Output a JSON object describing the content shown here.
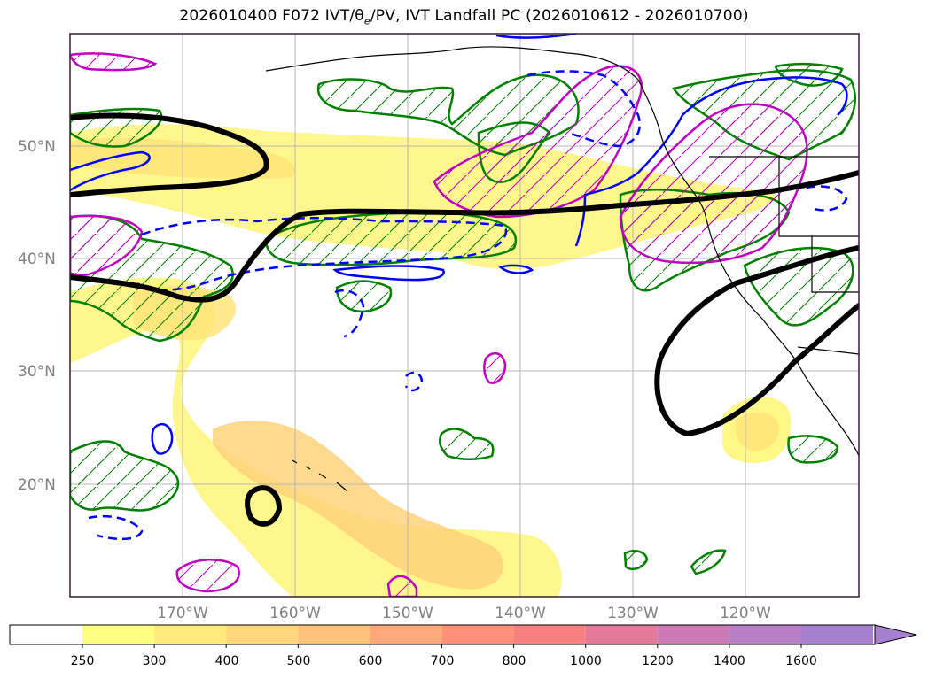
{
  "figure": {
    "title": "2026010400 F072 IVT/θe/PV, IVT Landfall PC (2026010612 - 2026010700)",
    "title_parts": {
      "prefix": "2026010400 F072 IVT/",
      "theta": "θ",
      "theta_sub": "e",
      "suffix": "/PV, IVT Landfall PC (2026010612 - 2026010700)"
    }
  },
  "map": {
    "lat_labels": [
      "50°N",
      "40°N",
      "30°N",
      "20°N"
    ],
    "lon_labels": [
      "170°W",
      "160°W",
      "150°W",
      "140°W",
      "130°W",
      "120°W"
    ],
    "colors": {
      "ivt_fill_light": "#fff67a",
      "ivt_fill_mid": "#ffe47a",
      "ivt_fill_strong": "#ffd27a",
      "pv_contour": "#000000",
      "green_contour": "#008000",
      "blue_contour": "#0000ff",
      "magenta_contour": "#c000c0",
      "grid": "#b0b0b0",
      "coast": "#000000"
    }
  },
  "colorbar": {
    "ticks": [
      "250",
      "300",
      "400",
      "500",
      "600",
      "700",
      "800",
      "1000",
      "1200",
      "1400",
      "1600"
    ],
    "colors": [
      "#ffff80",
      "#ffea7a",
      "#ffd67a",
      "#ffc27a",
      "#ffa87a",
      "#ff917a",
      "#f78080",
      "#e2799a",
      "#cc7ab4",
      "#b880c8",
      "#a77fd0"
    ]
  }
}
